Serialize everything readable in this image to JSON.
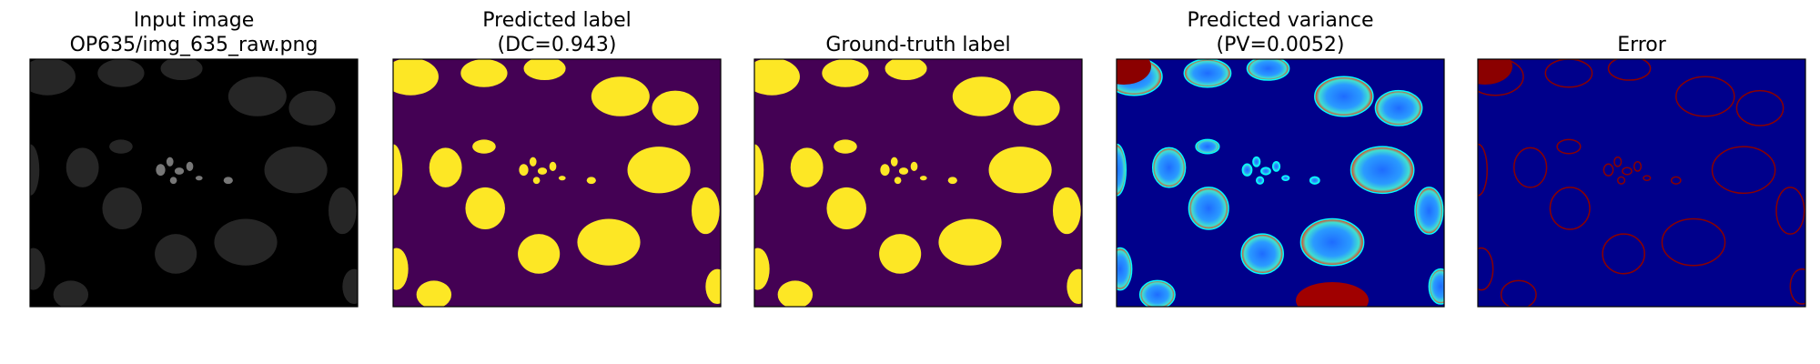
{
  "panels": [
    {
      "title": [
        "Input image",
        "OP635/img_635_raw.png"
      ]
    },
    {
      "title": [
        "Predicted label",
        "(DC=0.943)"
      ]
    },
    {
      "title": [
        "Ground-truth label"
      ]
    },
    {
      "title": [
        "Predicted variance",
        "(PV=0.0052)"
      ]
    },
    {
      "title": [
        "Error"
      ]
    }
  ]
}
